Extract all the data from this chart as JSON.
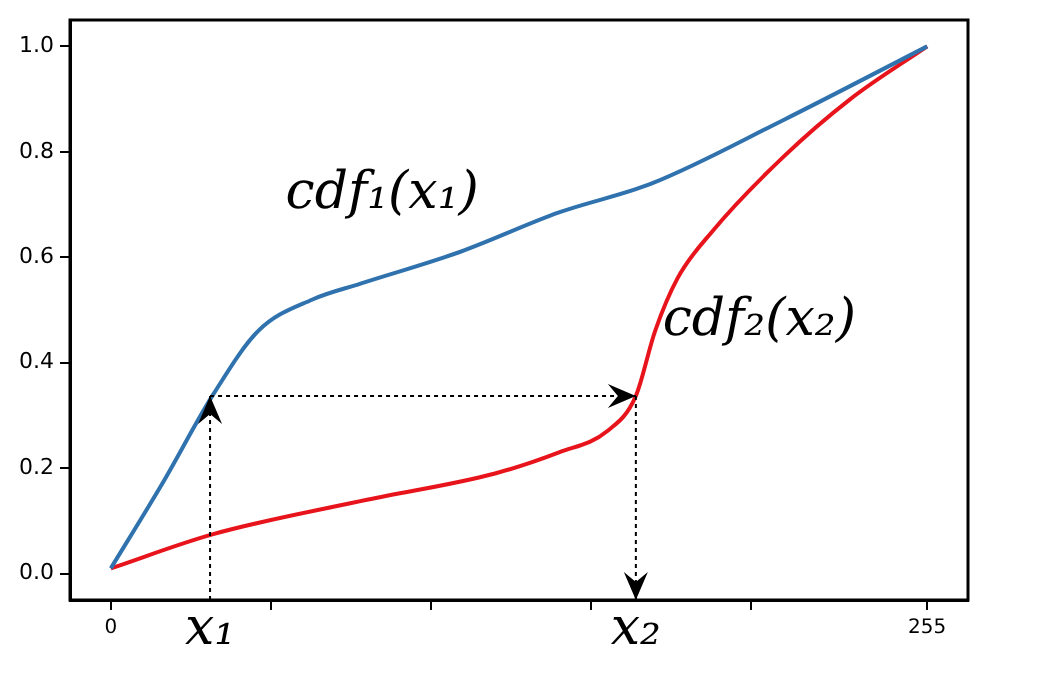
{
  "chart_data": {
    "type": "line",
    "series": [
      {
        "color": "#2f72ae",
        "x": [
          0,
          16,
          32,
          46,
          63,
          78,
          109,
          140,
          169,
          210,
          255
        ],
        "values": [
          0.01,
          0.17,
          0.34,
          0.46,
          0.52,
          0.55,
          0.61,
          0.685,
          0.74,
          0.86,
          1.0
        ]
      },
      {
        "color": "#e8141c",
        "x": [
          0,
          32,
          80,
          120,
          140,
          155,
          164,
          170,
          177,
          188,
          210,
          231,
          255
        ],
        "values": [
          0.01,
          0.075,
          0.14,
          0.19,
          0.23,
          0.27,
          0.337,
          0.46,
          0.56,
          0.65,
          0.79,
          0.9,
          1.0
        ]
      }
    ],
    "xlim": [
      -12.75,
      267.75
    ],
    "xticks": [
      0,
      {
        "value": 50,
        "label": null
      },
      {
        "value": 100,
        "label": null
      },
      {
        "value": 150,
        "label": null
      },
      {
        "value": 200,
        "label": null
      },
      255
    ],
    "ylim": [
      -0.05,
      1.05
    ],
    "yticks": [
      {
        "value": 0,
        "label": "0.0"
      },
      {
        "value": 0.2,
        "label": "0.2"
      },
      {
        "value": 0.4,
        "label": "0.4"
      },
      {
        "value": 0.6,
        "label": "0.6"
      },
      {
        "value": 0.8,
        "label": "0.8"
      },
      {
        "value": 1.0,
        "label": "1.0"
      }
    ],
    "annotations": [
      "cdf₁(x₁)",
      "cdf₂(x₂)",
      {
        "text": "x₁",
        "x": 31,
        "y": 0.337
      },
      {
        "text": "x₂",
        "x": 164,
        "y": 0.337
      }
    ],
    "grid": false,
    "legend": false,
    "marker": "none",
    "line_style": "solid"
  }
}
